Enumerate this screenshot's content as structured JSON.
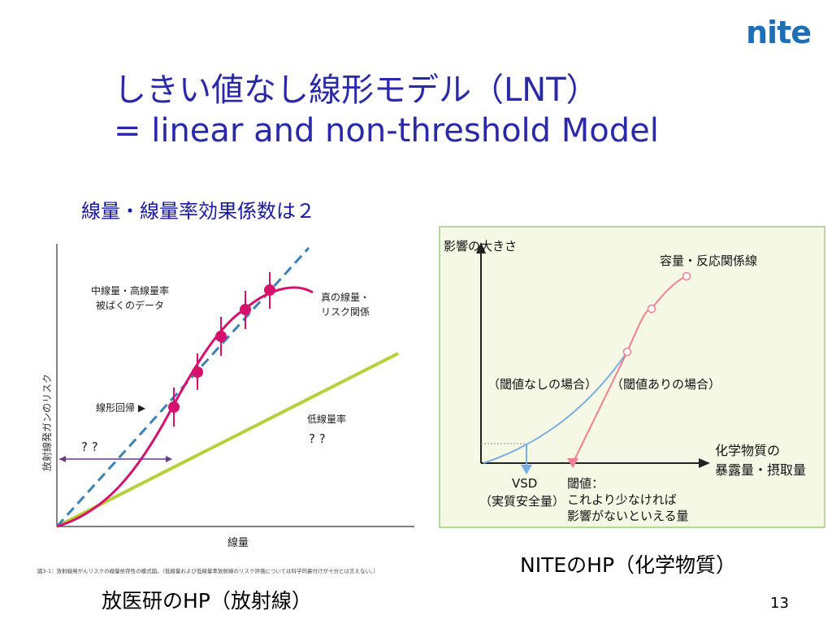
{
  "logo": "nite",
  "title_line1": "しきい値なし線形モデル（LNT）",
  "title_line2": "= linear and non-threshold Model",
  "subtitle": "線量・線量率効果係数は２",
  "left_figure": {
    "y_axis_label": "放射線発ガンのリスク",
    "x_axis_label": "線量",
    "annotation_high": [
      "中線量・高線量率",
      "被ばくのデータ"
    ],
    "annotation_true": [
      "真の線量・",
      "リスク関係"
    ],
    "annotation_linear": "線形回帰 ▶",
    "annotation_unknown_left": "? ?",
    "annotation_low": "低線量率",
    "annotation_unknown_right": "? ?",
    "caption_small": "図3-1：放射線発がんリスクの線量依存性の模式図。（低線量および低線量率放射線のリスク評価については科学的裏付けが十分とは言えない。）"
  },
  "right_figure": {
    "y_axis_label": "影響の大きさ",
    "curve_label": "容量・反応関係線",
    "no_threshold_label": "（閾値なしの場合）",
    "threshold_label": "（閾値ありの場合）",
    "x_axis_label": [
      "化学物質の",
      "暴露量・摂取量"
    ],
    "vsd_label": [
      "VSD",
      "（実質安全量）"
    ],
    "threshold_note": [
      "閾値：",
      "これより少なければ",
      "影響がないといえる量"
    ]
  },
  "left_caption": "放医研のHP（放射線）",
  "right_caption": "NITEのHP（化学物質）",
  "page_number": "13",
  "colors": {
    "title": "#2a2aa8",
    "logo": "#1f6fb5",
    "magenta": "#d4126e",
    "dashed_blue": "#3a82b8",
    "low_dose_line": "#b8cf3c",
    "right_bg": "#f6f8e6",
    "right_border": "#b8d8a0",
    "pink_curve": "#f08090",
    "blue_curve": "#7aaee0"
  }
}
